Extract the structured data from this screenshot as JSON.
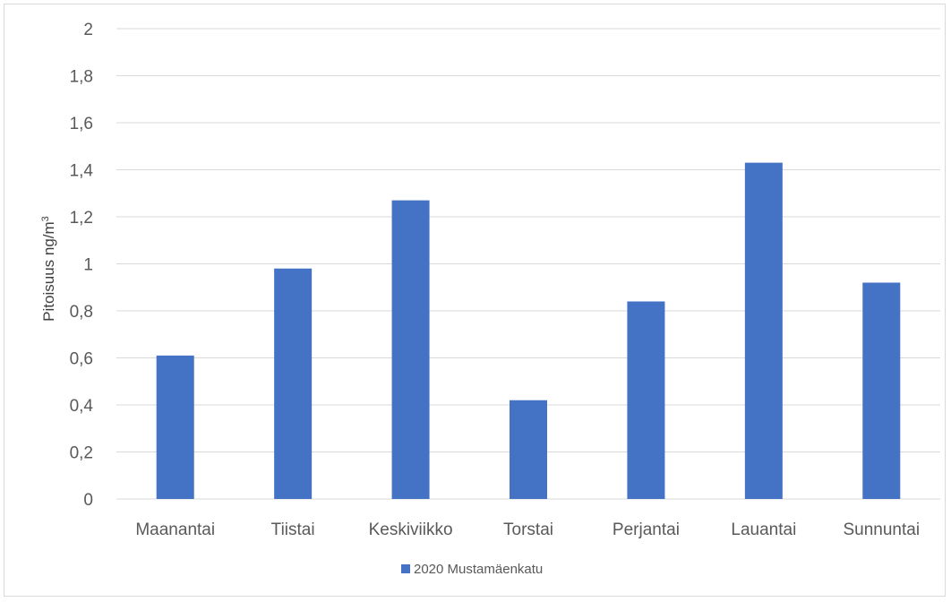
{
  "chart_data": {
    "type": "bar",
    "title": "",
    "xlabel": "",
    "ylabel": "Pitoisuus ng/m",
    "ylabel_superscript": "3",
    "categories": [
      "Maanantai",
      "Tiistai",
      "Keskiviikko",
      "Torstai",
      "Perjantai",
      "Lauantai",
      "Sunnuntai"
    ],
    "series": [
      {
        "name": "2020 Mustamäenkatu",
        "color": "#4472c4",
        "values": [
          0.61,
          0.98,
          1.27,
          0.42,
          0.84,
          1.43,
          0.92
        ]
      }
    ],
    "ylim": [
      0,
      2
    ],
    "yticks": [
      0,
      0.2,
      0.4,
      0.6,
      0.8,
      1,
      1.2,
      1.4,
      1.6,
      1.8,
      2
    ],
    "ytick_labels": [
      "0",
      "0,2",
      "0,4",
      "0,6",
      "0,8",
      "1",
      "1,2",
      "1,4",
      "1,6",
      "1,8",
      "2"
    ],
    "grid": true,
    "legend_position": "bottom",
    "gridline_color": "#d9d9d9"
  }
}
